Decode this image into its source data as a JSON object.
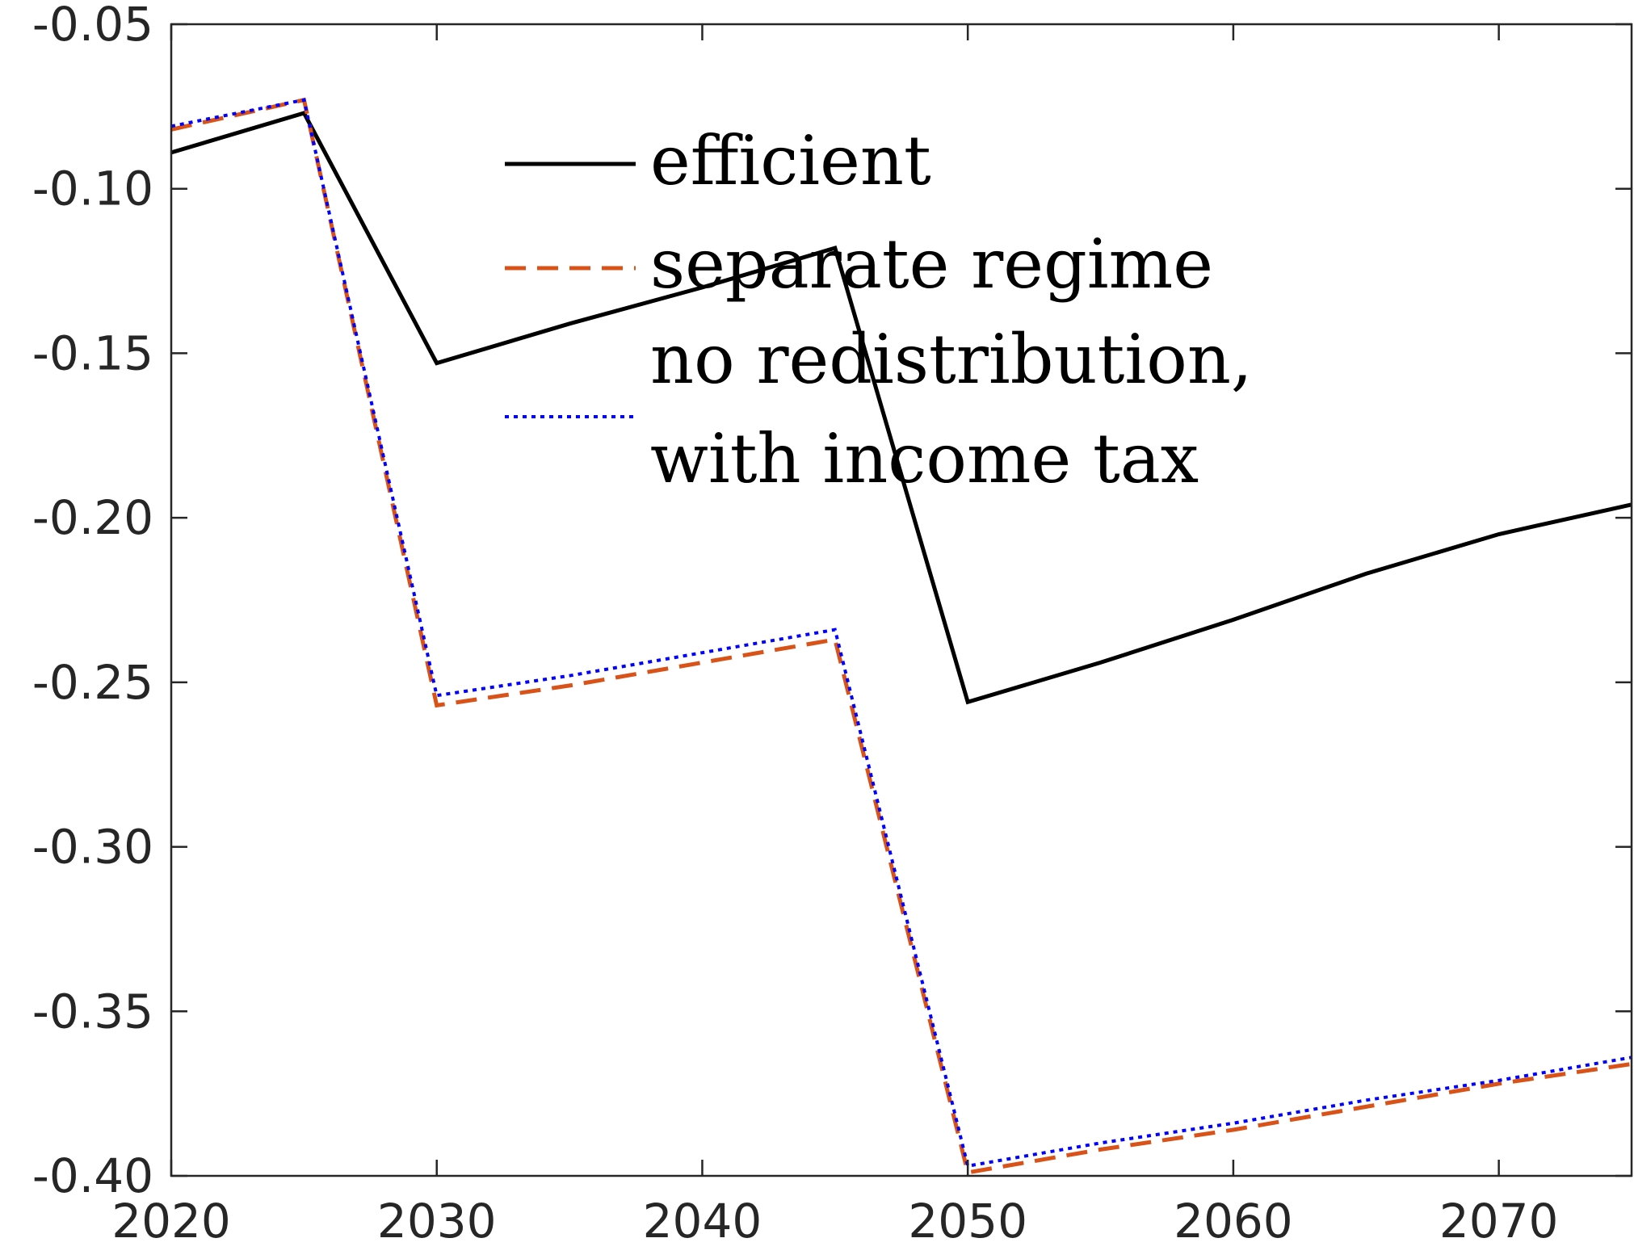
{
  "chart_data": {
    "type": "line",
    "title": "",
    "xlabel": "",
    "ylabel": "",
    "xlim": [
      2020,
      2075
    ],
    "ylim": [
      -0.4,
      -0.05
    ],
    "grid": false,
    "legend_position": "top-center",
    "x_ticks": [
      2020,
      2030,
      2040,
      2050,
      2060,
      2070
    ],
    "x_tick_labels": [
      "2020",
      "2030",
      "2040",
      "2050",
      "2060",
      "2070"
    ],
    "y_ticks": [
      -0.05,
      -0.1,
      -0.15,
      -0.2,
      -0.25,
      -0.3,
      -0.35,
      -0.4
    ],
    "y_tick_labels": [
      "-0.05",
      "-0.10",
      "-0.15",
      "-0.20",
      "-0.25",
      "-0.30",
      "-0.35",
      "-0.40"
    ],
    "x": [
      2020,
      2025,
      2030,
      2035,
      2040,
      2045,
      2050,
      2055,
      2060,
      2065,
      2070,
      2075
    ],
    "series": [
      {
        "name": "efficient",
        "color": "#000000",
        "style": "solid",
        "values": [
          -0.089,
          -0.077,
          -0.153,
          -0.141,
          -0.13,
          -0.118,
          -0.256,
          -0.244,
          -0.231,
          -0.217,
          -0.205,
          -0.196
        ]
      },
      {
        "name": "separate regime",
        "color": "#d95319",
        "style": "dashed",
        "values": [
          -0.082,
          -0.073,
          -0.257,
          -0.251,
          -0.244,
          -0.237,
          -0.399,
          -0.392,
          -0.386,
          -0.379,
          -0.372,
          -0.366
        ]
      },
      {
        "name": "no redistribution,",
        "name_line2": "with income tax",
        "color": "#0000ff",
        "style": "dotted",
        "values": [
          -0.081,
          -0.073,
          -0.254,
          -0.248,
          -0.241,
          -0.234,
          -0.397,
          -0.39,
          -0.384,
          -0.377,
          -0.371,
          -0.364
        ]
      }
    ]
  }
}
